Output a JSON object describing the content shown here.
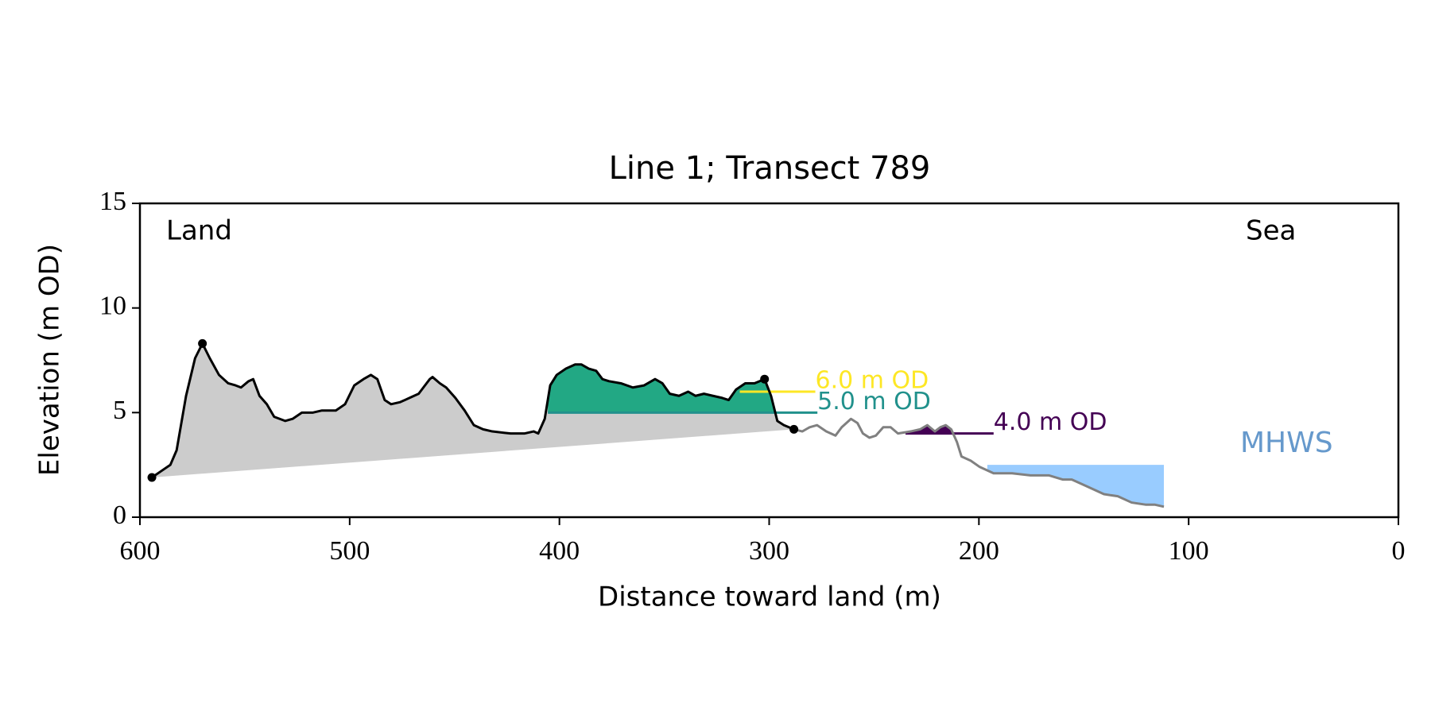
{
  "chart_data": {
    "type": "line",
    "title": "Line 1; Transect 789",
    "xlabel": "Distance toward land (m)",
    "ylabel": "Elevation (m OD)",
    "xlim": [
      600,
      0
    ],
    "ylim": [
      0,
      15
    ],
    "xticks": [
      600,
      500,
      400,
      300,
      200,
      100,
      0
    ],
    "yticks": [
      0,
      5,
      10,
      15
    ],
    "annotations": {
      "left": "Land",
      "right": "Sea"
    },
    "series": [
      {
        "color": "#000000",
        "x": [
          594.3,
          589.9,
          585.5,
          582.5,
          578,
          573.7,
          570.2,
          566.7,
          562.3,
          557.9,
          554.4,
          551.8,
          548.2,
          546,
          543,
          539.5,
          536,
          530.7,
          527.2,
          522.8,
          517.5,
          513.2,
          506.6,
          502.2,
          497.8,
          493.4,
          489.9,
          486.8,
          483.3,
          480.3,
          475.9,
          471.5,
          467.1,
          464.1,
          461.8,
          460.5,
          457,
          454,
          449.6,
          445.2,
          440.8,
          436.4,
          432,
          423.3,
          416.7,
          412.3,
          410.1,
          407,
          404.4,
          401.3,
          396.9,
          392.5,
          389.5,
          386,
          382.5,
          379.5,
          376.4,
          370.7,
          365,
          359.6,
          354.4,
          350.9,
          347.4,
          343,
          338.6,
          335.1,
          331.1,
          326.8,
          322.4,
          319.3,
          315.8,
          311.4,
          307,
          302.2,
          299.1,
          296.1,
          293,
          288.2
        ],
        "values": [
          1.9,
          2.2,
          2.5,
          3.2,
          5.8,
          7.6,
          8.3,
          7.6,
          6.8,
          6.4,
          6.3,
          6.2,
          6.5,
          6.6,
          5.8,
          5.4,
          4.8,
          4.6,
          4.7,
          5.0,
          5.0,
          5.1,
          5.1,
          5.4,
          6.3,
          6.6,
          6.8,
          6.6,
          5.6,
          5.4,
          5.5,
          5.7,
          5.9,
          6.3,
          6.6,
          6.7,
          6.4,
          6.2,
          5.7,
          5.1,
          4.4,
          4.2,
          4.1,
          4.0,
          4.0,
          4.1,
          4.0,
          4.7,
          6.3,
          6.8,
          7.1,
          7.3,
          7.3,
          7.1,
          7.0,
          6.6,
          6.5,
          6.4,
          6.2,
          6.3,
          6.6,
          6.4,
          5.9,
          5.8,
          6.0,
          5.8,
          5.9,
          5.8,
          5.7,
          5.6,
          6.1,
          6.4,
          6.4,
          6.6,
          5.8,
          4.6,
          4.4,
          4.2
        ]
      },
      {
        "color": "#808080",
        "x": [
          288.2,
          284.2,
          280.7,
          277.2,
          272.8,
          268.4,
          265.4,
          261,
          257.9,
          255.3,
          252.2,
          249.1,
          245.6,
          242.1,
          238.6,
          232.5,
          228,
          224.6,
          221,
          218.4,
          215.8,
          213.2,
          210.5,
          208.3,
          203.9,
          199.6,
          193,
          184.2,
          175.4,
          166.7,
          160.1,
          155.7,
          149.1,
          140.4,
          133.8,
          127.2,
          120.6,
          116.2,
          111.8
        ],
        "values": [
          4.2,
          4.1,
          4.3,
          4.4,
          4.1,
          3.9,
          4.3,
          4.7,
          4.5,
          4.0,
          3.8,
          3.9,
          4.3,
          4.3,
          4.0,
          4.1,
          4.2,
          4.4,
          4.1,
          4.3,
          4.4,
          4.2,
          3.6,
          2.9,
          2.7,
          2.4,
          2.1,
          2.1,
          2.0,
          2.0,
          1.8,
          1.8,
          1.5,
          1.1,
          1.0,
          0.7,
          0.6,
          0.6,
          0.5
        ]
      }
    ],
    "area_color": "#cccccc",
    "markers": {
      "color": "#000000",
      "x": [
        594.3,
        570.2,
        302.2,
        288.2
      ],
      "values": [
        1.9,
        8.3,
        6.6,
        4.2
      ]
    },
    "levels": [
      {
        "label": "6.0 m OD",
        "value": 6.0,
        "x_range": [
          314,
          278
        ],
        "color": "#fde725",
        "fill_color": "#fde725"
      },
      {
        "label": "5.0 m OD",
        "value": 5.0,
        "x_range": [
          405.5,
          277
        ],
        "color": "#21918c",
        "fill_color": "#22a884"
      },
      {
        "label": "4.0 m OD",
        "value": 4.0,
        "x_range": [
          235,
          193
        ],
        "color": "#440154",
        "fill_color": "#440154"
      }
    ],
    "mhws": {
      "label": "MHWS",
      "value": 2.5,
      "x_range": [
        196,
        111.8
      ],
      "color": "#99ccff",
      "label_color": "#6699cc"
    }
  }
}
